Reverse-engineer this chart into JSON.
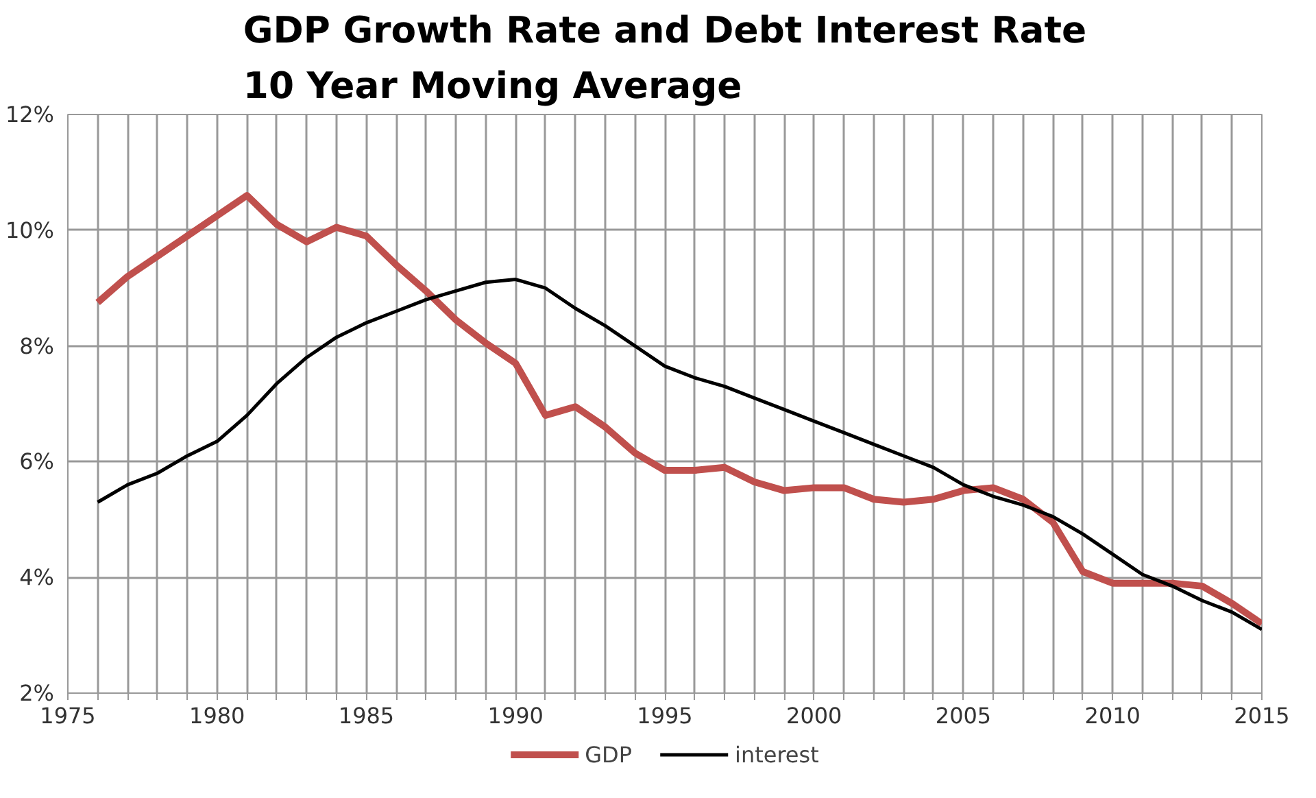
{
  "chart_data": {
    "type": "line",
    "title": "GDP Growth Rate and Debt Interest Rate\n10 Year Moving Average",
    "x": [
      1976,
      1977,
      1978,
      1979,
      1980,
      1981,
      1982,
      1983,
      1984,
      1985,
      1986,
      1987,
      1988,
      1989,
      1990,
      1991,
      1992,
      1993,
      1994,
      1995,
      1996,
      1997,
      1998,
      1999,
      2000,
      2001,
      2002,
      2003,
      2004,
      2005,
      2006,
      2007,
      2008,
      2009,
      2010,
      2011,
      2012,
      2013,
      2014,
      2015
    ],
    "series": [
      {
        "name": "GDP",
        "color": "#c0504d",
        "values": [
          8.75,
          9.2,
          9.55,
          9.9,
          10.25,
          10.6,
          10.1,
          9.8,
          10.05,
          9.9,
          9.4,
          8.95,
          8.45,
          8.05,
          7.7,
          6.8,
          6.95,
          6.6,
          6.15,
          5.85,
          5.85,
          5.9,
          5.65,
          5.5,
          5.55,
          5.55,
          5.35,
          5.3,
          5.35,
          5.5,
          5.55,
          5.35,
          4.95,
          4.1,
          3.9,
          3.9,
          3.9,
          3.85,
          3.55,
          3.2
        ]
      },
      {
        "name": "interest",
        "color": "#000000",
        "values": [
          5.3,
          5.6,
          5.8,
          6.1,
          6.35,
          6.8,
          7.35,
          7.8,
          8.15,
          8.4,
          8.6,
          8.8,
          8.95,
          9.1,
          9.15,
          9.0,
          8.65,
          8.35,
          8.0,
          7.65,
          7.45,
          7.3,
          7.1,
          6.9,
          6.7,
          6.5,
          6.3,
          6.1,
          5.9,
          5.6,
          5.4,
          5.25,
          5.05,
          4.75,
          4.4,
          4.05,
          3.85,
          3.6,
          3.4,
          3.1
        ]
      }
    ],
    "xlim": [
      1975,
      2015
    ],
    "ylim": [
      2,
      12
    ],
    "xticks": [
      1975,
      {
        "value": 1976,
        "label": null
      },
      {
        "value": 1977,
        "label": null
      },
      {
        "value": 1978,
        "label": null
      },
      {
        "value": 1979,
        "label": null
      },
      1980,
      {
        "value": 1981,
        "label": null
      },
      {
        "value": 1982,
        "label": null
      },
      {
        "value": 1983,
        "label": null
      },
      {
        "value": 1984,
        "label": null
      },
      1985,
      {
        "value": 1986,
        "label": null
      },
      {
        "value": 1987,
        "label": null
      },
      {
        "value": 1988,
        "label": null
      },
      {
        "value": 1989,
        "label": null
      },
      1990,
      {
        "value": 1991,
        "label": null
      },
      {
        "value": 1992,
        "label": null
      },
      {
        "value": 1993,
        "label": null
      },
      {
        "value": 1994,
        "label": null
      },
      1995,
      {
        "value": 1996,
        "label": null
      },
      {
        "value": 1997,
        "label": null
      },
      {
        "value": 1998,
        "label": null
      },
      {
        "value": 1999,
        "label": null
      },
      2000,
      {
        "value": 2001,
        "label": null
      },
      {
        "value": 2002,
        "label": null
      },
      {
        "value": 2003,
        "label": null
      },
      {
        "value": 2004,
        "label": null
      },
      2005,
      {
        "value": 2006,
        "label": null
      },
      {
        "value": 2007,
        "label": null
      },
      {
        "value": 2008,
        "label": null
      },
      {
        "value": 2009,
        "label": null
      },
      2010,
      {
        "value": 2011,
        "label": null
      },
      {
        "value": 2012,
        "label": null
      },
      {
        "value": 2013,
        "label": null
      },
      {
        "value": 2014,
        "label": null
      },
      2015
    ],
    "yticks": [
      {
        "value": 2,
        "label": "2%"
      },
      {
        "value": 4,
        "label": "4%"
      },
      {
        "value": 6,
        "label": "6%"
      },
      {
        "value": 8,
        "label": "8%"
      },
      {
        "value": 10,
        "label": "10%"
      },
      {
        "value": 12,
        "label": "12%"
      }
    ],
    "grid": true,
    "legend": "bottom",
    "marker": "none",
    "line_style": "solid"
  }
}
